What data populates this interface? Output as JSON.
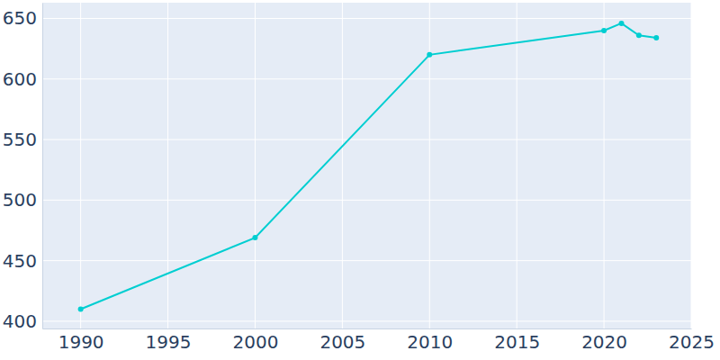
{
  "chart_data": {
    "type": "line",
    "x": [
      1990,
      2000,
      2010,
      2020,
      2021,
      2022,
      2023
    ],
    "values": [
      410,
      469,
      620,
      640,
      646,
      636,
      634
    ],
    "color": "#00ced1",
    "marker": "circle",
    "xlim": [
      1987.8,
      2025
    ],
    "xticks": [
      1990,
      1995,
      2000,
      2005,
      2010,
      2015,
      2020,
      2025
    ],
    "ylim": [
      394,
      663
    ],
    "yticks": [
      400,
      450,
      500,
      550,
      600,
      650
    ],
    "grid": true
  }
}
